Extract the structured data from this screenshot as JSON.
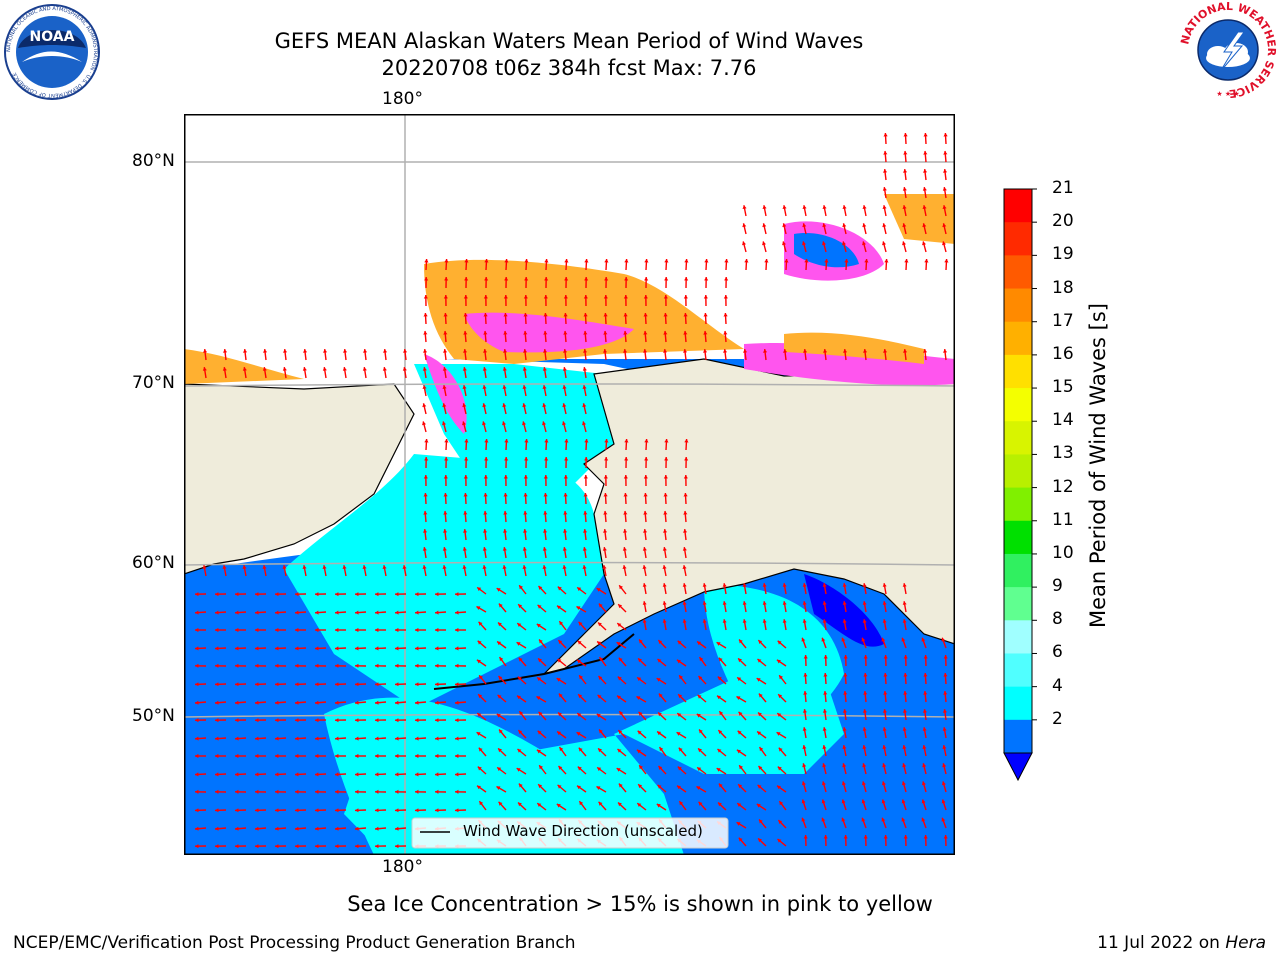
{
  "title": {
    "line1": "GEFS MEAN Alaskan Waters Mean Period of Wind Waves",
    "line2": "20220708 t06z 384h fcst   Max: 7.76"
  },
  "map": {
    "longitude_labels": [
      "180°",
      "180°"
    ],
    "latitude_labels": [
      "80°N",
      "70°N",
      "60°N",
      "50°N"
    ],
    "legend_text": "Wind Wave Direction (unscaled)",
    "colors": {
      "land": "#efecdb",
      "ocean_low": "#0074ff",
      "ocean_mid": "#00ffff",
      "ice_pink": "#ff55ee",
      "ice_orange": "#ffb030",
      "arrows": "#ff0000",
      "grid": "#b0b0b0"
    }
  },
  "colorbar": {
    "label": "Mean Period of Wind Waves [s]",
    "ticks": [
      "21",
      "20",
      "19",
      "18",
      "17",
      "16",
      "15",
      "14",
      "13",
      "12",
      "11",
      "10",
      "9",
      "8",
      "6",
      "4",
      "2"
    ],
    "colors": [
      "#ff0000",
      "#ff2a00",
      "#ff5a00",
      "#ff8a00",
      "#ffb000",
      "#ffe000",
      "#f4ff00",
      "#d8f400",
      "#b8f000",
      "#80f000",
      "#00e000",
      "#30f060",
      "#60ff90",
      "#a0ffff",
      "#50ffff",
      "#00ffff",
      "#0074ff"
    ],
    "extend_color": "#0000ff"
  },
  "logos": {
    "noaa": {
      "text": "NOAA",
      "ring_text": "NATIONAL OCEANIC AND ATMOSPHERIC ADMINISTRATION · U.S. DEPARTMENT OF COMMERCE"
    },
    "nws": {
      "ring_text": "NATIONAL WEATHER SERVICE"
    }
  },
  "sea_ice_note": "Sea Ice Concentration > 15% is shown in pink to yellow",
  "footer": {
    "left": "NCEP/EMC/Verification Post Processing Product Generation Branch",
    "right_prefix": "11 Jul 2022 on ",
    "right_machine": "Hera"
  }
}
